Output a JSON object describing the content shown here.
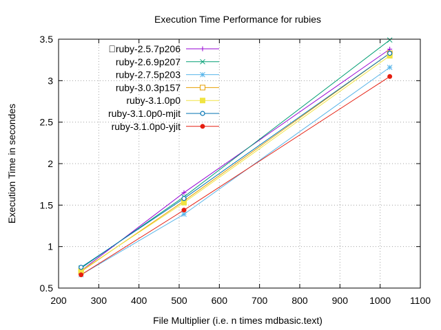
{
  "chart_data": {
    "type": "line",
    "title": "Execution Time Performance for rubies",
    "xlabel": "File Multiplier (i.e. n times mdbasic.text)",
    "ylabel": "Execution Time in secondes",
    "xlim": [
      200,
      1100
    ],
    "ylim": [
      0.5,
      3.5
    ],
    "xticks": [
      200,
      300,
      400,
      500,
      600,
      700,
      800,
      900,
      1000,
      1100
    ],
    "yticks": [
      0.5,
      1,
      1.5,
      2,
      2.5,
      3,
      3.5
    ],
    "ytick_labels": [
      "0.5",
      "1",
      "1.5",
      "2",
      "2.5",
      "3",
      "3.5"
    ],
    "grid": true,
    "legend_position": "top-left",
    "x": [
      256,
      512,
      1024
    ],
    "series": [
      {
        "name": "\u0000ruby-2.5.7p206",
        "values": [
          0.71,
          1.65,
          3.38
        ],
        "color": "#9400d3",
        "marker": "plus"
      },
      {
        "name": "ruby-2.6.9p207",
        "values": [
          0.74,
          1.6,
          3.49
        ],
        "color": "#009e73",
        "marker": "cross"
      },
      {
        "name": "ruby-2.7.5p203",
        "values": [
          0.66,
          1.39,
          3.16
        ],
        "color": "#56b4e9",
        "marker": "star"
      },
      {
        "name": "ruby-3.0.3p157",
        "values": [
          0.7,
          1.55,
          3.33
        ],
        "color": "#e69f00",
        "marker": "open-square"
      },
      {
        "name": "ruby-3.1.0p0",
        "values": [
          0.71,
          1.53,
          3.3
        ],
        "color": "#f0e442",
        "marker": "filled-square"
      },
      {
        "name": "ruby-3.1.0p0-mjit",
        "values": [
          0.75,
          1.58,
          3.33
        ],
        "color": "#0072b2",
        "marker": "open-circle"
      },
      {
        "name": "ruby-3.1.0p0-yjit",
        "values": [
          0.66,
          1.44,
          3.05
        ],
        "color": "#e51e10",
        "marker": "filled-circle"
      }
    ]
  }
}
